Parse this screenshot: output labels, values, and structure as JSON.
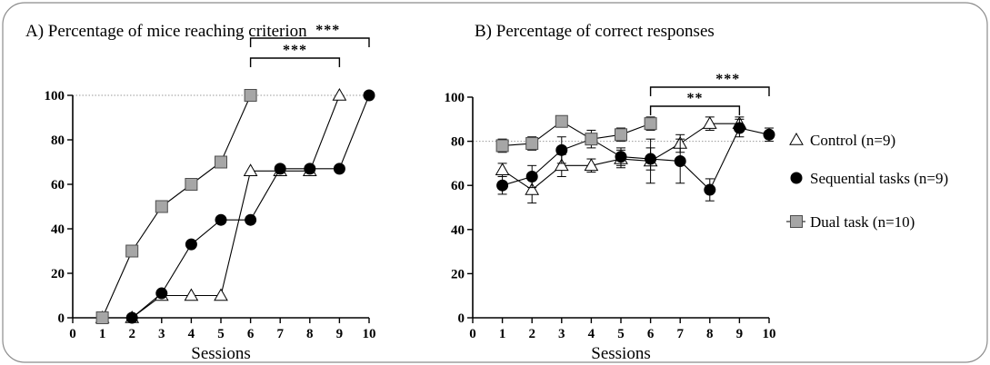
{
  "colors": {
    "control": "#ffffff",
    "sequential": "#000000",
    "dual": "#a6a6a6",
    "dual_stroke": "#4d4d4d",
    "reference_line": "#999999"
  },
  "legend": [
    {
      "key": "control",
      "label": "Control (n=9)",
      "marker": "triangle-open"
    },
    {
      "key": "sequential",
      "label": "Sequential tasks (n=9)",
      "marker": "circle-filled"
    },
    {
      "key": "dual",
      "label": "Dual task (n=10)",
      "marker": "square-gray"
    }
  ],
  "chart_data": [
    {
      "type": "line",
      "title": "A) Percentage of mice reaching criterion",
      "xlabel": "Sessions",
      "ylabel": "",
      "x_ticks": [
        0,
        1,
        2,
        3,
        4,
        5,
        6,
        7,
        8,
        9,
        10
      ],
      "y_ticks": [
        0,
        20,
        40,
        60,
        80,
        100
      ],
      "xlim": [
        0,
        10
      ],
      "ylim": [
        0,
        100
      ],
      "reference_line": 100,
      "series": [
        {
          "key": "control",
          "marker": "triangle-open",
          "x": [
            1,
            2,
            3,
            4,
            5,
            6,
            7,
            8,
            9
          ],
          "y": [
            0,
            0,
            10,
            10,
            10,
            66,
            66,
            66,
            100
          ]
        },
        {
          "key": "sequential",
          "marker": "circle-filled",
          "x": [
            1,
            2,
            3,
            4,
            5,
            6,
            7,
            8,
            9,
            10
          ],
          "y": [
            0,
            0,
            11,
            33,
            44,
            44,
            67,
            67,
            67,
            100
          ]
        },
        {
          "key": "dual",
          "marker": "square-gray",
          "x": [
            1,
            2,
            3,
            4,
            5,
            6
          ],
          "y": [
            0,
            30,
            50,
            60,
            70,
            100
          ]
        }
      ],
      "significance": [
        {
          "x_start": 6,
          "x_end": 9,
          "label": "***"
        },
        {
          "x_start": 6,
          "x_end": 10,
          "label": "***"
        }
      ]
    },
    {
      "type": "line",
      "title": "B) Percentage of correct responses",
      "xlabel": "Sessions",
      "ylabel": "",
      "x_ticks": [
        0,
        1,
        2,
        3,
        4,
        5,
        6,
        7,
        8,
        9,
        10
      ],
      "y_ticks": [
        0,
        20,
        40,
        60,
        80,
        100
      ],
      "xlim": [
        0,
        10
      ],
      "ylim": [
        0,
        100
      ],
      "reference_line": 80,
      "series": [
        {
          "key": "control",
          "marker": "triangle-open",
          "x": [
            1,
            2,
            3,
            4,
            5,
            6,
            7,
            8,
            9
          ],
          "y": [
            67,
            58,
            69,
            69,
            72,
            71,
            79,
            88,
            88
          ],
          "err": [
            3,
            6,
            5,
            3,
            4,
            10,
            4,
            3,
            3
          ]
        },
        {
          "key": "sequential",
          "marker": "circle-filled",
          "x": [
            1,
            2,
            3,
            4,
            5,
            6,
            7,
            8,
            9,
            10
          ],
          "y": [
            60,
            64,
            76,
            81,
            73,
            72,
            71,
            58,
            86,
            83
          ],
          "err": [
            4,
            5,
            6,
            4,
            4,
            5,
            10,
            5,
            4,
            3
          ]
        },
        {
          "key": "dual",
          "marker": "square-gray",
          "x": [
            1,
            2,
            3,
            4,
            5,
            6
          ],
          "y": [
            78,
            79,
            89,
            81,
            83,
            88
          ],
          "err": [
            3,
            3,
            2,
            2,
            3,
            3
          ]
        }
      ],
      "significance": [
        {
          "x_start": 6,
          "x_end": 9,
          "label": "**"
        },
        {
          "x_start": 6,
          "x_end": 10,
          "label": "***"
        }
      ]
    }
  ]
}
